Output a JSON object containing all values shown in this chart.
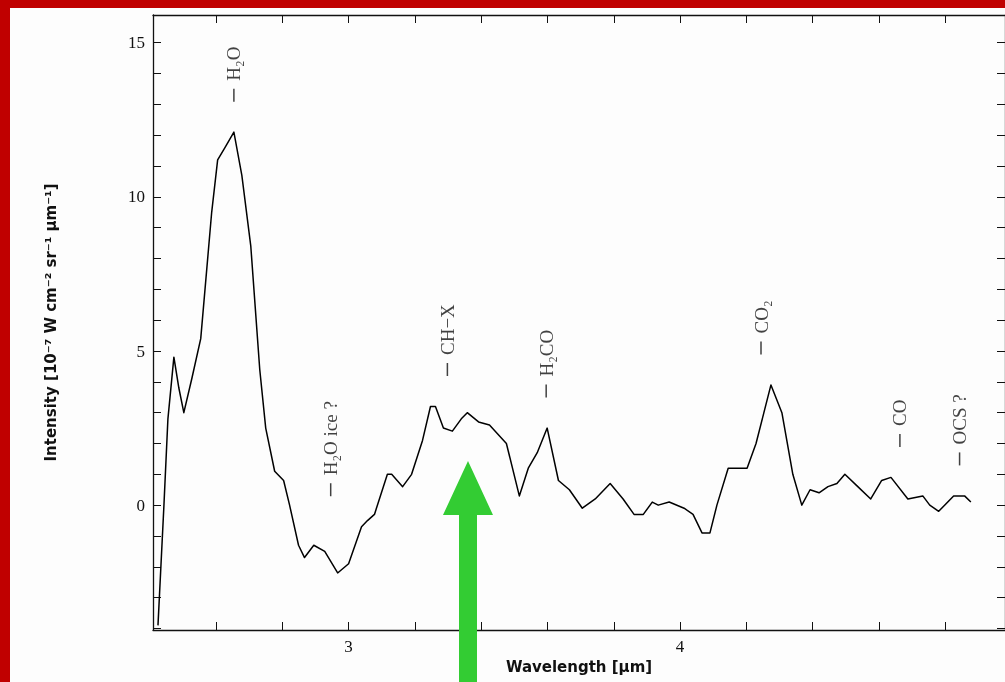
{
  "chart_data": {
    "type": "line",
    "xlabel": "Wavelength [µm]",
    "ylabel": "Intensity [10⁻⁷ W cm⁻² sr⁻¹ µm⁻¹]",
    "xlim": [
      2.41,
      4.98
    ],
    "ylim": [
      -4.05,
      15.9
    ],
    "xticks": [
      {
        "value": 2.6,
        "label": null
      },
      {
        "value": 2.8,
        "label": null
      },
      3,
      {
        "value": 3.2,
        "label": null
      },
      {
        "value": 3.4,
        "label": null
      },
      {
        "value": 3.6,
        "label": null
      },
      {
        "value": 3.8,
        "label": null
      },
      4,
      {
        "value": 4.2,
        "label": null
      },
      {
        "value": 4.4,
        "label": null
      },
      {
        "value": 4.6,
        "label": null
      },
      {
        "value": 4.8,
        "label": null
      }
    ],
    "yticks": [
      {
        "value": -4,
        "label": null
      },
      {
        "value": -3,
        "label": null
      },
      {
        "value": -2,
        "label": null
      },
      {
        "value": -1,
        "label": null
      },
      0,
      {
        "value": 1,
        "label": null
      },
      {
        "value": 2,
        "label": null
      },
      {
        "value": 3,
        "label": null
      },
      {
        "value": 4,
        "label": null
      },
      5,
      {
        "value": 6,
        "label": null
      },
      {
        "value": 7,
        "label": null
      },
      {
        "value": 8,
        "label": null
      },
      {
        "value": 9,
        "label": null
      },
      10,
      {
        "value": 11,
        "label": null
      },
      {
        "value": 12,
        "label": null
      },
      {
        "value": 13,
        "label": null
      },
      {
        "value": 14,
        "label": null
      },
      15
    ],
    "grid": false,
    "marker": "none",
    "line_style": "solid",
    "series": [
      {
        "color": "#000000",
        "x": [
          2.425,
          2.443,
          2.455,
          2.473,
          2.488,
          2.503,
          2.527,
          2.554,
          2.587,
          2.605,
          2.627,
          2.654,
          2.678,
          2.705,
          2.732,
          2.75,
          2.777,
          2.804,
          2.822,
          2.849,
          2.867,
          2.895,
          2.928,
          2.967,
          3.0,
          3.039,
          3.057,
          3.078,
          3.117,
          3.13,
          3.163,
          3.19,
          3.223,
          3.247,
          3.262,
          3.286,
          3.313,
          3.34,
          3.358,
          3.392,
          3.425,
          3.476,
          3.515,
          3.542,
          3.569,
          3.599,
          3.633,
          3.666,
          3.705,
          3.744,
          3.789,
          3.828,
          3.861,
          3.889,
          3.916,
          3.934,
          3.967,
          4.012,
          4.039,
          4.066,
          4.09,
          4.111,
          4.145,
          4.202,
          4.229,
          4.274,
          4.307,
          4.34,
          4.367,
          4.392,
          4.419,
          4.446,
          4.473,
          4.497,
          4.536,
          4.575,
          4.608,
          4.636,
          4.687,
          4.732,
          4.753,
          4.78,
          4.825,
          4.858,
          4.877
        ],
        "values": [
          -3.9,
          0,
          2.8,
          4.8,
          3.8,
          3.0,
          4.1,
          5.4,
          9.5,
          11.2,
          11.6,
          12.1,
          10.7,
          8.4,
          4.4,
          2.5,
          1.1,
          0.8,
          0,
          -1.3,
          -1.7,
          -1.3,
          -1.5,
          -2.2,
          -1.9,
          -0.7,
          -0.5,
          -0.3,
          1.0,
          1.0,
          0.6,
          1.0,
          2.1,
          3.2,
          3.2,
          2.5,
          2.4,
          2.8,
          3.0,
          2.7,
          2.6,
          2.0,
          0.3,
          1.2,
          1.7,
          2.5,
          0.8,
          0.5,
          -0.1,
          0.2,
          0.7,
          0.2,
          -0.3,
          -0.3,
          0.1,
          0,
          0.1,
          -0.1,
          -0.3,
          -0.9,
          -0.9,
          0,
          1.2,
          1.2,
          2.0,
          3.9,
          3.0,
          1.0,
          0,
          0.5,
          0.4,
          0.6,
          0.7,
          1.0,
          0.6,
          0.2,
          0.8,
          0.9,
          0.2,
          0.3,
          0,
          -0.2,
          0.3,
          0.3,
          0.1
        ]
      }
    ],
    "ref_lines": [
      {
        "axis": "x",
        "value": 2.654,
        "label": "H₂O"
      },
      {
        "axis": "x",
        "value": 2.946,
        "label": "H₂O ice ?"
      },
      {
        "axis": "x",
        "value": 3.298,
        "label": "CH−X"
      },
      {
        "axis": "x",
        "value": 3.596,
        "label": "H₂CO"
      },
      {
        "axis": "x",
        "value": 4.244,
        "label": "CO₂"
      },
      {
        "axis": "x",
        "value": 4.663,
        "label": "CO"
      },
      {
        "axis": "x",
        "value": 4.843,
        "label": "OCS ?"
      }
    ]
  }
}
